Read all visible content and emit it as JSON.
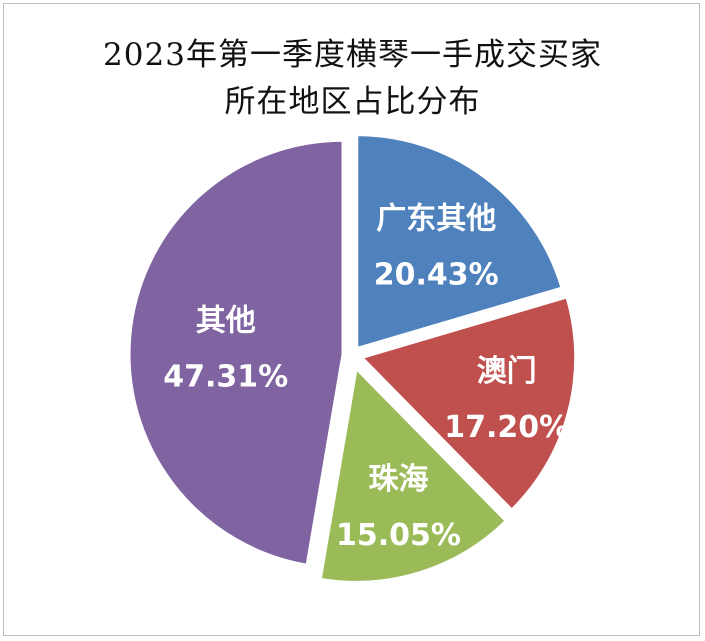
{
  "chart_data": {
    "type": "pie",
    "title_lines": [
      "2023年第一季度横琴一手成交买家",
      "所在地区占比分布"
    ],
    "slices": [
      {
        "label": "广东其他",
        "value": 20.43,
        "display": "20.43%",
        "color": "#4f81bd"
      },
      {
        "label": "澳门",
        "value": 17.2,
        "display": "17.20%",
        "color": "#c0504d"
      },
      {
        "label": "珠海",
        "value": 15.05,
        "display": "15.05%",
        "color": "#9bbb59"
      },
      {
        "label": "其他",
        "value": 47.31,
        "display": "47.31%",
        "color": "#8064a2"
      }
    ]
  }
}
